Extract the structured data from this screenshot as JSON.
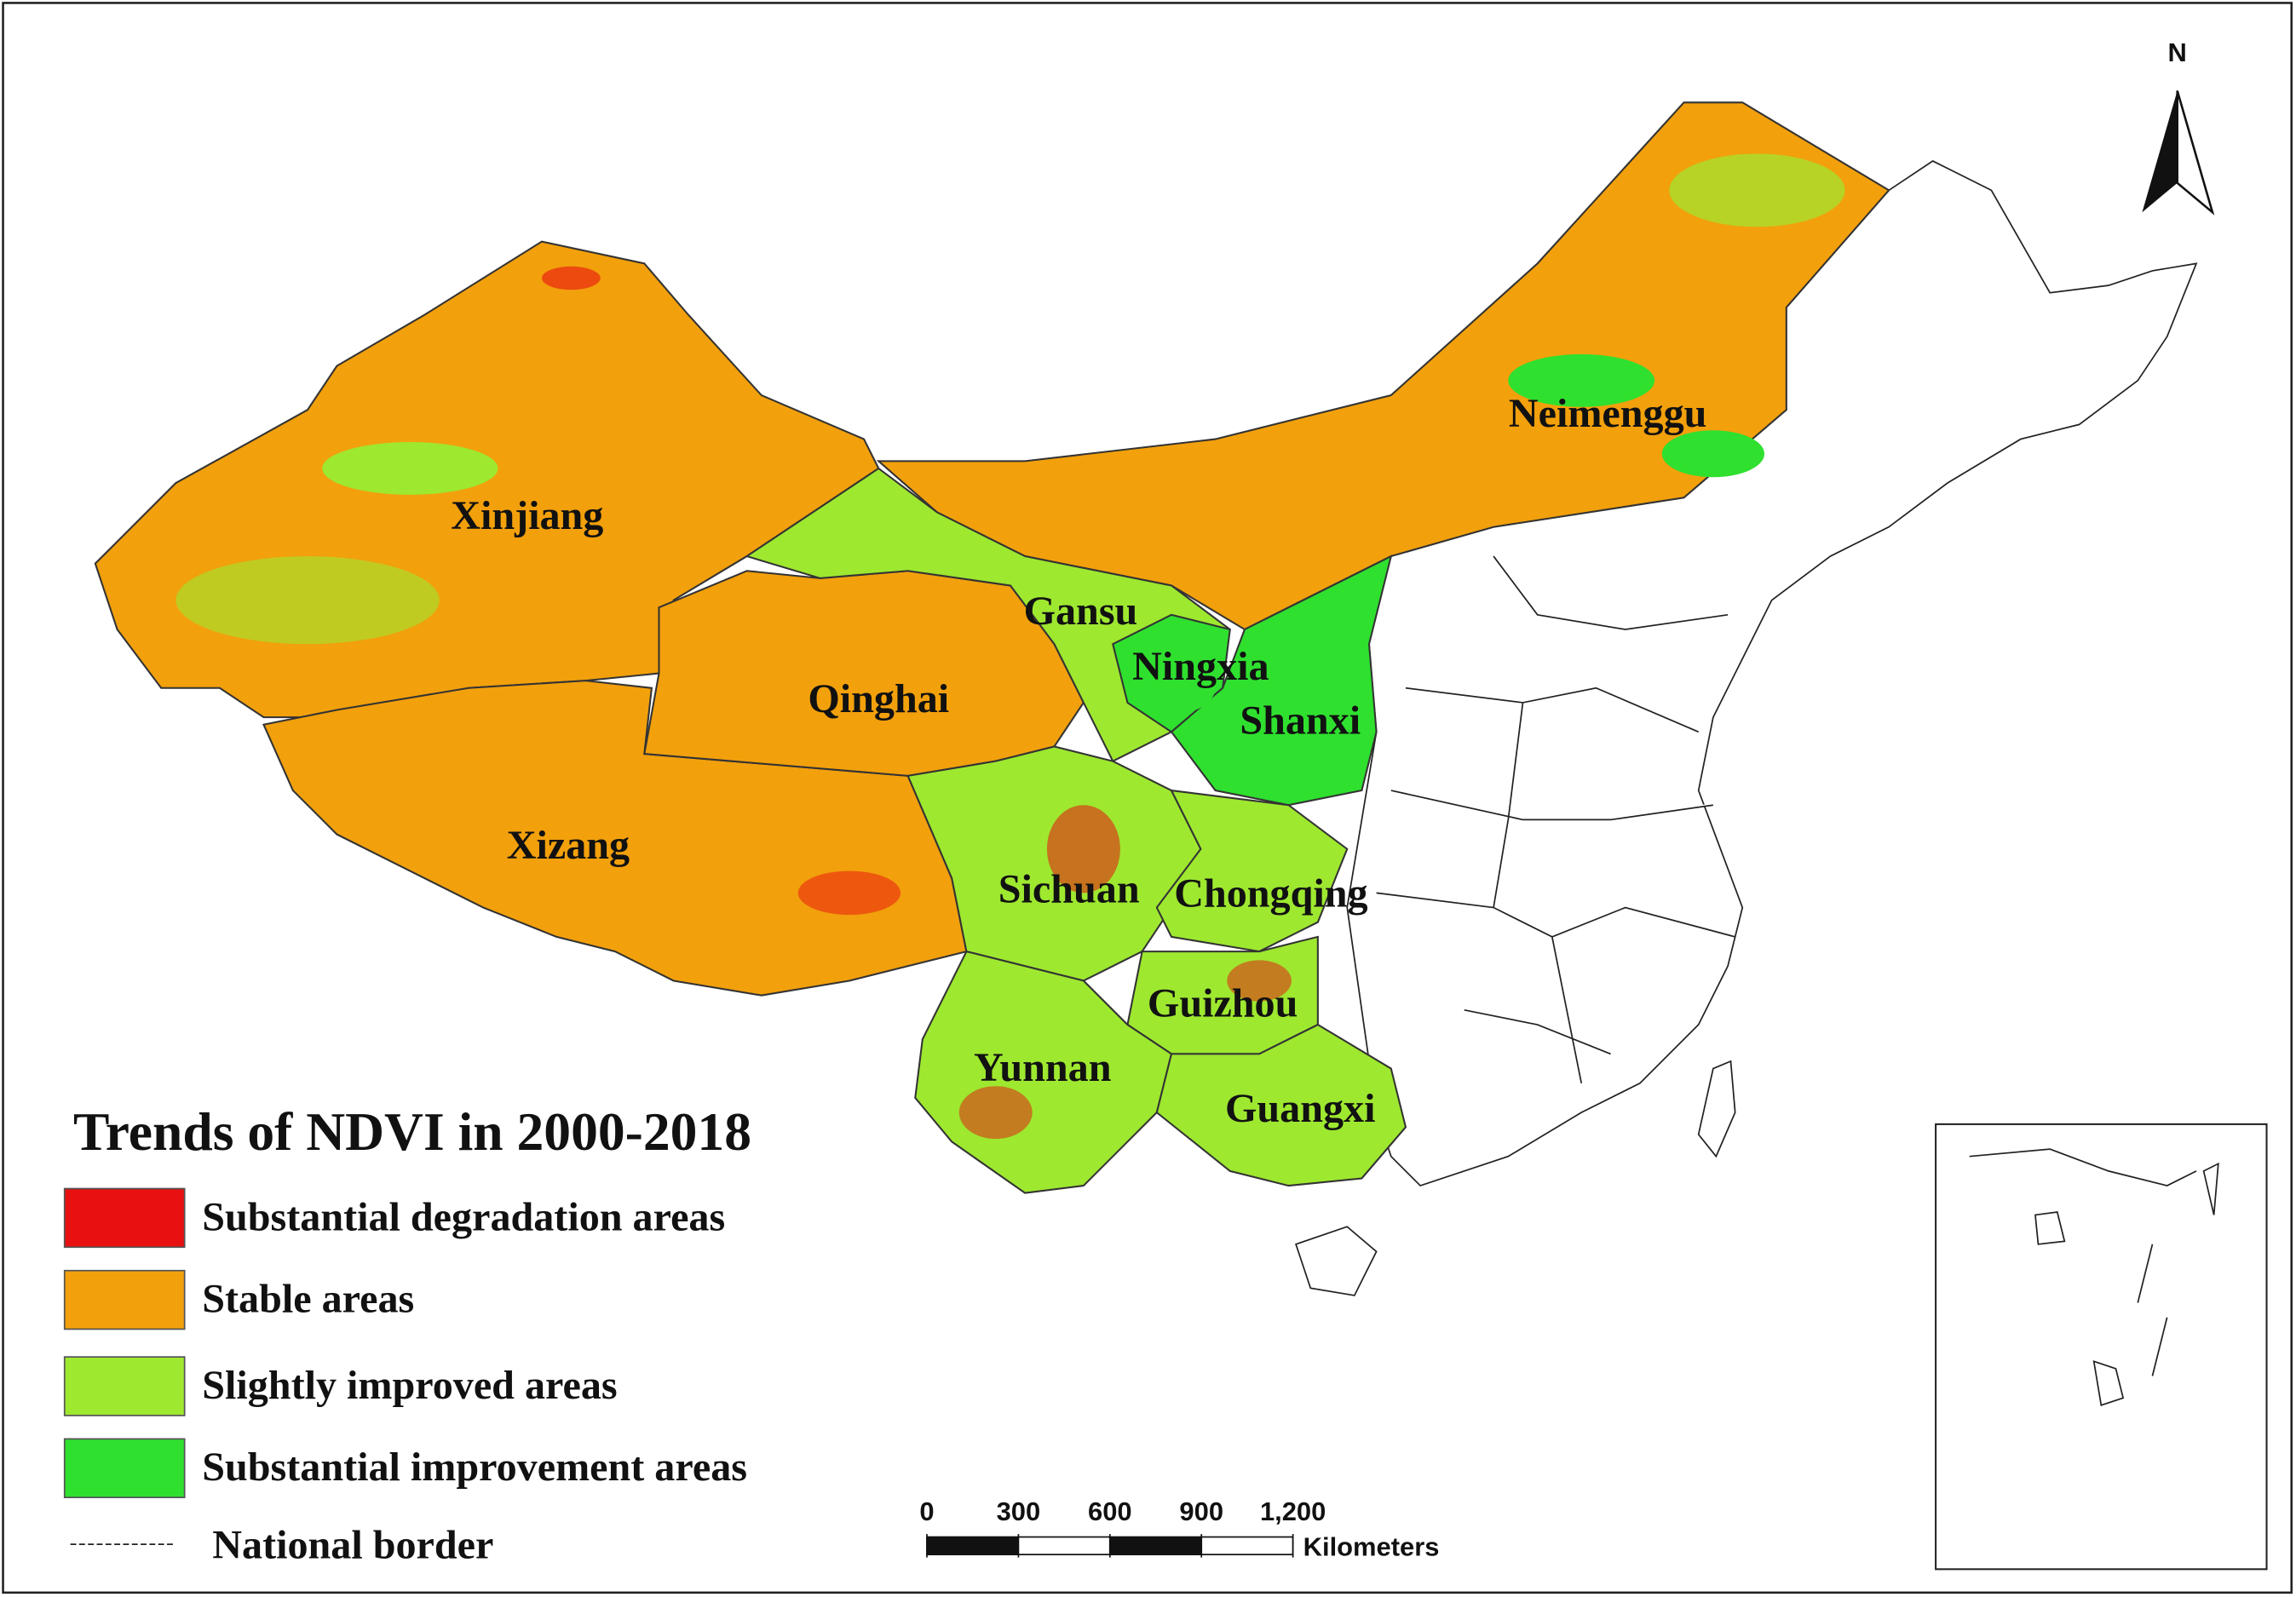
{
  "title": "Trends of NDVI in 2000-2018",
  "legend": [
    {
      "label": "Substantial degradation areas",
      "color": "#e81010"
    },
    {
      "label": "Stable areas",
      "color": "#f2a00c"
    },
    {
      "label": "Slightly improved areas",
      "color": "#9ee830"
    },
    {
      "label": "Substantial improvement areas",
      "color": "#2fe02f"
    }
  ],
  "border_legend": "National border",
  "regions": [
    "Xinjiang",
    "Neimenggu",
    "Gansu",
    "Ningxia",
    "Qinghai",
    "Shanxi",
    "Xizang",
    "Sichuan",
    "Chongqing",
    "Guizhou",
    "Yunnan",
    "Guangxi"
  ],
  "north": "N",
  "scale_bar": {
    "ticks": [
      0,
      300,
      600,
      900,
      {
        "value": 1200,
        "label": "1,200"
      }
    ],
    "unit": "Kilometers"
  }
}
